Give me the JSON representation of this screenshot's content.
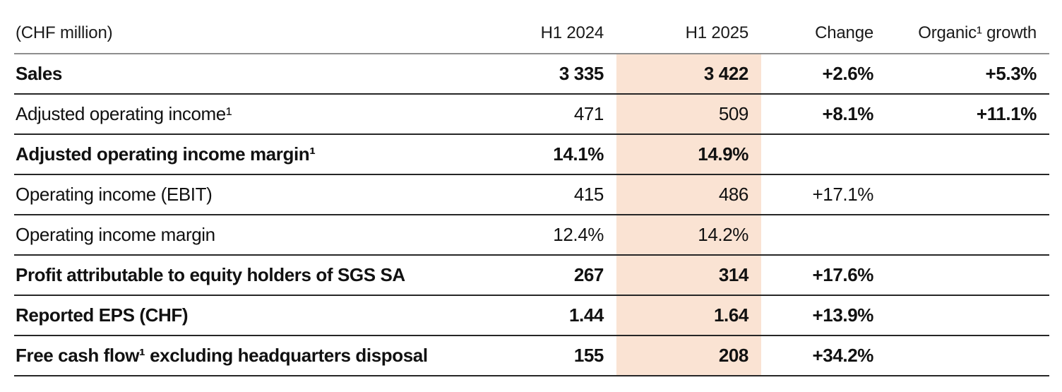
{
  "table": {
    "unit_label": "(CHF million)",
    "columns": {
      "h1_2024": "H1 2024",
      "h1_2025": "H1 2025",
      "change": "Change",
      "organic": "Organic¹ growth"
    },
    "highlight_color": "#FAE3D3",
    "rows": [
      {
        "label": "Sales",
        "h1_2024": "3 335",
        "h1_2025": "3 422",
        "change": "+2.6%",
        "organic": "+5.3%"
      },
      {
        "label": "Adjusted operating income¹",
        "h1_2024": "471",
        "h1_2025": "509",
        "change": "+8.1%",
        "organic": "+11.1%"
      },
      {
        "label": "Adjusted operating income margin¹",
        "h1_2024": "14.1%",
        "h1_2025": "14.9%",
        "change": "",
        "organic": ""
      },
      {
        "label": "Operating income (EBIT)",
        "h1_2024": "415",
        "h1_2025": "486",
        "change": "+17.1%",
        "organic": ""
      },
      {
        "label": "Operating income margin",
        "h1_2024": "12.4%",
        "h1_2025": "14.2%",
        "change": "",
        "organic": ""
      },
      {
        "label": "Profit attributable to equity holders of SGS SA",
        "h1_2024": "267",
        "h1_2025": "314",
        "change": "+17.6%",
        "organic": ""
      },
      {
        "label": "Reported EPS (CHF)",
        "h1_2024": "1.44",
        "h1_2025": "1.64",
        "change": "+13.9%",
        "organic": ""
      },
      {
        "label": "Free cash flow¹ excluding headquarters disposal",
        "h1_2024": "155",
        "h1_2025": "208",
        "change": "+34.2%",
        "organic": ""
      }
    ]
  }
}
